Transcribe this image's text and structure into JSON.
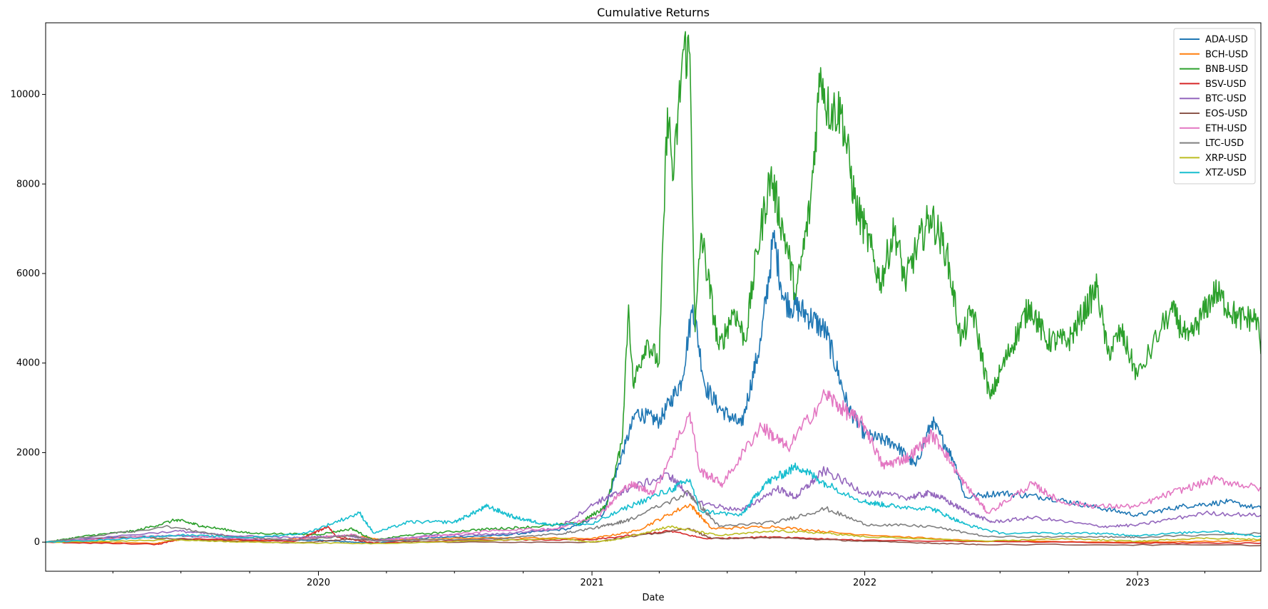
{
  "chart_data": {
    "type": "line",
    "title": "Cumulative Returns",
    "xlabel": "Date",
    "ylabel": "",
    "xlim": [
      "2019-01-01",
      "2023-06-15"
    ],
    "ylim": [
      -650,
      11600
    ],
    "x_ticks": [
      {
        "date": "2020-01-01",
        "label": "2020"
      },
      {
        "date": "2021-01-01",
        "label": "2021"
      },
      {
        "date": "2022-01-01",
        "label": "2022"
      },
      {
        "date": "2023-01-01",
        "label": "2023"
      }
    ],
    "y_ticks": [
      0,
      2000,
      4000,
      6000,
      8000,
      10000
    ],
    "y_tick_labels": [
      "0",
      "2000",
      "4000",
      "6000",
      "8000",
      "10000"
    ],
    "grid": false,
    "legend": "top-right",
    "series": [
      {
        "name": "ADA-USD",
        "color": "#1f77b4",
        "points": [
          [
            "2019-01-01",
            0
          ],
          [
            "2019-04-01",
            100
          ],
          [
            "2019-07-01",
            150
          ],
          [
            "2019-10-01",
            50
          ],
          [
            "2020-01-01",
            40
          ],
          [
            "2020-03-15",
            -20
          ],
          [
            "2020-06-01",
            100
          ],
          [
            "2020-09-01",
            150
          ],
          [
            "2020-12-01",
            300
          ],
          [
            "2021-01-15",
            600
          ],
          [
            "2021-02-15",
            2200
          ],
          [
            "2021-03-01",
            2900
          ],
          [
            "2021-04-01",
            2700
          ],
          [
            "2021-05-01",
            3600
          ],
          [
            "2021-05-16",
            5300
          ],
          [
            "2021-06-01",
            3500
          ],
          [
            "2021-06-20",
            3000
          ],
          [
            "2021-07-20",
            2600
          ],
          [
            "2021-08-15",
            4500
          ],
          [
            "2021-09-01",
            6800
          ],
          [
            "2021-09-15",
            5400
          ],
          [
            "2021-10-15",
            5100
          ],
          [
            "2021-11-10",
            4700
          ],
          [
            "2021-12-10",
            3000
          ],
          [
            "2022-01-01",
            2400
          ],
          [
            "2022-02-10",
            2200
          ],
          [
            "2022-03-10",
            1700
          ],
          [
            "2022-04-01",
            2700
          ],
          [
            "2022-05-01",
            1800
          ],
          [
            "2022-05-15",
            1000
          ],
          [
            "2022-07-01",
            1100
          ],
          [
            "2022-09-01",
            1000
          ],
          [
            "2022-11-01",
            800
          ],
          [
            "2023-01-01",
            600
          ],
          [
            "2023-03-01",
            800
          ],
          [
            "2023-05-01",
            900
          ],
          [
            "2023-06-15",
            750
          ]
        ]
      },
      {
        "name": "BCH-USD",
        "color": "#ff7f0e",
        "points": [
          [
            "2019-01-01",
            0
          ],
          [
            "2019-06-01",
            -20
          ],
          [
            "2019-07-01",
            60
          ],
          [
            "2019-10-01",
            20
          ],
          [
            "2020-02-15",
            150
          ],
          [
            "2020-04-01",
            50
          ],
          [
            "2020-09-01",
            100
          ],
          [
            "2021-01-01",
            80
          ],
          [
            "2021-03-01",
            250
          ],
          [
            "2021-05-12",
            850
          ],
          [
            "2021-06-10",
            300
          ],
          [
            "2021-09-01",
            350
          ],
          [
            "2021-12-01",
            200
          ],
          [
            "2022-06-01",
            20
          ],
          [
            "2023-01-01",
            0
          ],
          [
            "2023-06-15",
            30
          ]
        ]
      },
      {
        "name": "BNB-USD",
        "color": "#2ca02c",
        "points": [
          [
            "2019-01-01",
            0
          ],
          [
            "2019-03-01",
            150
          ],
          [
            "2019-05-01",
            250
          ],
          [
            "2019-06-25",
            500
          ],
          [
            "2019-08-01",
            350
          ],
          [
            "2019-10-01",
            200
          ],
          [
            "2020-01-01",
            170
          ],
          [
            "2020-02-15",
            300
          ],
          [
            "2020-03-15",
            40
          ],
          [
            "2020-05-01",
            160
          ],
          [
            "2020-08-01",
            280
          ],
          [
            "2020-10-01",
            330
          ],
          [
            "2020-12-15",
            420
          ],
          [
            "2021-01-20",
            800
          ],
          [
            "2021-02-10",
            2200
          ],
          [
            "2021-02-19",
            5300
          ],
          [
            "2021-02-25",
            3500
          ],
          [
            "2021-03-15",
            4500
          ],
          [
            "2021-04-01",
            4000
          ],
          [
            "2021-04-12",
            9700
          ],
          [
            "2021-04-20",
            8100
          ],
          [
            "2021-05-03",
            11000
          ],
          [
            "2021-05-12",
            10900
          ],
          [
            "2021-05-19",
            4700
          ],
          [
            "2021-05-27",
            6900
          ],
          [
            "2021-06-20",
            4300
          ],
          [
            "2021-07-10",
            5200
          ],
          [
            "2021-07-25",
            4500
          ],
          [
            "2021-08-10",
            6500
          ],
          [
            "2021-08-28",
            8200
          ],
          [
            "2021-09-20",
            6500
          ],
          [
            "2021-10-01",
            5500
          ],
          [
            "2021-10-20",
            7500
          ],
          [
            "2021-11-03",
            10600
          ],
          [
            "2021-11-12",
            9700
          ],
          [
            "2021-12-01",
            9600
          ],
          [
            "2021-12-20",
            7500
          ],
          [
            "2022-01-01",
            7000
          ],
          [
            "2022-01-22",
            5800
          ],
          [
            "2022-02-10",
            7000
          ],
          [
            "2022-02-24",
            5800
          ],
          [
            "2022-03-10",
            6500
          ],
          [
            "2022-03-30",
            7300
          ],
          [
            "2022-04-20",
            6500
          ],
          [
            "2022-05-10",
            4500
          ],
          [
            "2022-05-25",
            5200
          ],
          [
            "2022-06-18",
            3200
          ],
          [
            "2022-07-01",
            3800
          ],
          [
            "2022-08-10",
            5300
          ],
          [
            "2022-09-01",
            4500
          ],
          [
            "2022-10-01",
            4500
          ],
          [
            "2022-11-08",
            5700
          ],
          [
            "2022-11-22",
            4200
          ],
          [
            "2022-12-10",
            4700
          ],
          [
            "2023-01-01",
            3700
          ],
          [
            "2023-02-15",
            5200
          ],
          [
            "2023-03-10",
            4500
          ],
          [
            "2023-04-15",
            5600
          ],
          [
            "2023-05-15",
            5000
          ],
          [
            "2023-06-10",
            5000
          ],
          [
            "2023-06-15",
            4200
          ]
        ]
      },
      {
        "name": "BSV-USD",
        "color": "#d62728",
        "points": [
          [
            "2019-01-01",
            0
          ],
          [
            "2019-06-01",
            -50
          ],
          [
            "2019-07-01",
            80
          ],
          [
            "2019-12-01",
            20
          ],
          [
            "2020-01-14",
            350
          ],
          [
            "2020-01-25",
            120
          ],
          [
            "2020-03-15",
            -20
          ],
          [
            "2020-08-01",
            50
          ],
          [
            "2021-01-01",
            50
          ],
          [
            "2021-04-15",
            250
          ],
          [
            "2021-06-01",
            80
          ],
          [
            "2021-09-01",
            120
          ],
          [
            "2022-01-01",
            40
          ],
          [
            "2023-01-01",
            -20
          ],
          [
            "2023-06-15",
            -20
          ]
        ]
      },
      {
        "name": "BTC-USD",
        "color": "#9467bd",
        "points": [
          [
            "2019-01-01",
            0
          ],
          [
            "2019-06-26",
            250
          ],
          [
            "2019-09-01",
            150
          ],
          [
            "2019-12-01",
            100
          ],
          [
            "2020-02-10",
            150
          ],
          [
            "2020-03-13",
            40
          ],
          [
            "2020-06-01",
            150
          ],
          [
            "2020-09-01",
            180
          ],
          [
            "2020-11-15",
            300
          ],
          [
            "2021-01-08",
            900
          ],
          [
            "2021-02-20",
            1200
          ],
          [
            "2021-04-14",
            1500
          ],
          [
            "2021-05-20",
            900
          ],
          [
            "2021-07-20",
            700
          ],
          [
            "2021-09-06",
            1200
          ],
          [
            "2021-09-30",
            1000
          ],
          [
            "2021-11-08",
            1600
          ],
          [
            "2022-01-01",
            1100
          ],
          [
            "2022-03-01",
            1000
          ],
          [
            "2022-04-01",
            1100
          ],
          [
            "2022-05-15",
            700
          ],
          [
            "2022-06-20",
            450
          ],
          [
            "2022-08-15",
            550
          ],
          [
            "2022-11-15",
            350
          ],
          [
            "2023-01-01",
            380
          ],
          [
            "2023-04-01",
            650
          ],
          [
            "2023-06-15",
            600
          ]
        ]
      },
      {
        "name": "EOS-USD",
        "color": "#8c564b",
        "points": [
          [
            "2019-01-01",
            0
          ],
          [
            "2019-05-01",
            120
          ],
          [
            "2019-08-01",
            40
          ],
          [
            "2019-12-01",
            -20
          ],
          [
            "2020-02-15",
            70
          ],
          [
            "2020-06-01",
            0
          ],
          [
            "2021-01-01",
            0
          ],
          [
            "2021-05-12",
            300
          ],
          [
            "2021-06-10",
            80
          ],
          [
            "2021-09-01",
            100
          ],
          [
            "2022-01-01",
            20
          ],
          [
            "2022-06-01",
            -50
          ],
          [
            "2023-06-15",
            -70
          ]
        ]
      },
      {
        "name": "ETH-USD",
        "color": "#e377c2",
        "points": [
          [
            "2019-01-01",
            0
          ],
          [
            "2019-06-26",
            160
          ],
          [
            "2019-09-01",
            90
          ],
          [
            "2019-12-01",
            50
          ],
          [
            "2020-02-15",
            170
          ],
          [
            "2020-03-15",
            30
          ],
          [
            "2020-06-01",
            130
          ],
          [
            "2020-09-01",
            270
          ],
          [
            "2020-11-15",
            300
          ],
          [
            "2021-01-10",
            600
          ],
          [
            "2021-02-20",
            1300
          ],
          [
            "2021-03-25",
            1100
          ],
          [
            "2021-05-12",
            2900
          ],
          [
            "2021-05-25",
            1600
          ],
          [
            "2021-06-25",
            1300
          ],
          [
            "2021-08-15",
            2600
          ],
          [
            "2021-09-20",
            2100
          ],
          [
            "2021-11-10",
            3300
          ],
          [
            "2021-12-01",
            3000
          ],
          [
            "2022-01-01",
            2600
          ],
          [
            "2022-01-25",
            1700
          ],
          [
            "2022-03-01",
            1900
          ],
          [
            "2022-04-01",
            2400
          ],
          [
            "2022-04-15",
            2100
          ],
          [
            "2022-05-10",
            1400
          ],
          [
            "2022-06-15",
            650
          ],
          [
            "2022-08-13",
            1300
          ],
          [
            "2022-09-20",
            900
          ],
          [
            "2022-11-10",
            800
          ],
          [
            "2023-01-01",
            800
          ],
          [
            "2023-02-15",
            1100
          ],
          [
            "2023-04-15",
            1400
          ],
          [
            "2023-06-15",
            1200
          ]
        ]
      },
      {
        "name": "LTC-USD",
        "color": "#7f7f7f",
        "points": [
          [
            "2019-01-01",
            0
          ],
          [
            "2019-06-15",
            350
          ],
          [
            "2019-09-01",
            130
          ],
          [
            "2019-12-01",
            40
          ],
          [
            "2020-02-15",
            150
          ],
          [
            "2020-03-15",
            30
          ],
          [
            "2020-09-01",
            80
          ],
          [
            "2020-11-25",
            200
          ],
          [
            "2021-01-15",
            350
          ],
          [
            "2021-02-20",
            500
          ],
          [
            "2021-05-10",
            1100
          ],
          [
            "2021-06-20",
            350
          ],
          [
            "2021-09-06",
            450
          ],
          [
            "2021-11-10",
            750
          ],
          [
            "2022-01-01",
            400
          ],
          [
            "2022-04-01",
            350
          ],
          [
            "2022-06-15",
            120
          ],
          [
            "2022-11-01",
            120
          ],
          [
            "2023-01-01",
            110
          ],
          [
            "2023-06-15",
            200
          ]
        ]
      },
      {
        "name": "XRP-USD",
        "color": "#bcbd22",
        "points": [
          [
            "2019-01-01",
            0
          ],
          [
            "2019-06-25",
            50
          ],
          [
            "2019-10-01",
            0
          ],
          [
            "2020-03-15",
            -30
          ],
          [
            "2020-11-24",
            80
          ],
          [
            "2020-12-29",
            0
          ],
          [
            "2021-02-01",
            50
          ],
          [
            "2021-04-14",
            350
          ],
          [
            "2021-06-20",
            150
          ],
          [
            "2021-09-06",
            250
          ],
          [
            "2021-11-10",
            200
          ],
          [
            "2022-01-01",
            120
          ],
          [
            "2022-06-15",
            20
          ],
          [
            "2022-09-23",
            80
          ],
          [
            "2023-01-01",
            20
          ],
          [
            "2023-03-28",
            90
          ],
          [
            "2023-06-15",
            60
          ]
        ]
      },
      {
        "name": "XTZ-USD",
        "color": "#17becf",
        "points": [
          [
            "2019-01-01",
            0
          ],
          [
            "2019-04-01",
            60
          ],
          [
            "2019-07-01",
            160
          ],
          [
            "2019-10-01",
            100
          ],
          [
            "2019-12-15",
            200
          ],
          [
            "2020-02-25",
            650
          ],
          [
            "2020-03-15",
            200
          ],
          [
            "2020-05-01",
            450
          ],
          [
            "2020-07-01",
            450
          ],
          [
            "2020-08-14",
            800
          ],
          [
            "2020-09-20",
            550
          ],
          [
            "2020-11-01",
            400
          ],
          [
            "2021-01-01",
            400
          ],
          [
            "2021-02-20",
            800
          ],
          [
            "2021-04-20",
            1200
          ],
          [
            "2021-05-12",
            1400
          ],
          [
            "2021-05-25",
            700
          ],
          [
            "2021-07-20",
            600
          ],
          [
            "2021-08-20",
            1300
          ],
          [
            "2021-10-03",
            1700
          ],
          [
            "2021-11-10",
            1300
          ],
          [
            "2022-01-01",
            900
          ],
          [
            "2022-02-10",
            800
          ],
          [
            "2022-04-01",
            750
          ],
          [
            "2022-05-15",
            400
          ],
          [
            "2022-07-01",
            200
          ],
          [
            "2022-11-01",
            200
          ],
          [
            "2023-01-01",
            150
          ],
          [
            "2023-04-15",
            250
          ],
          [
            "2023-06-15",
            120
          ]
        ]
      }
    ]
  }
}
